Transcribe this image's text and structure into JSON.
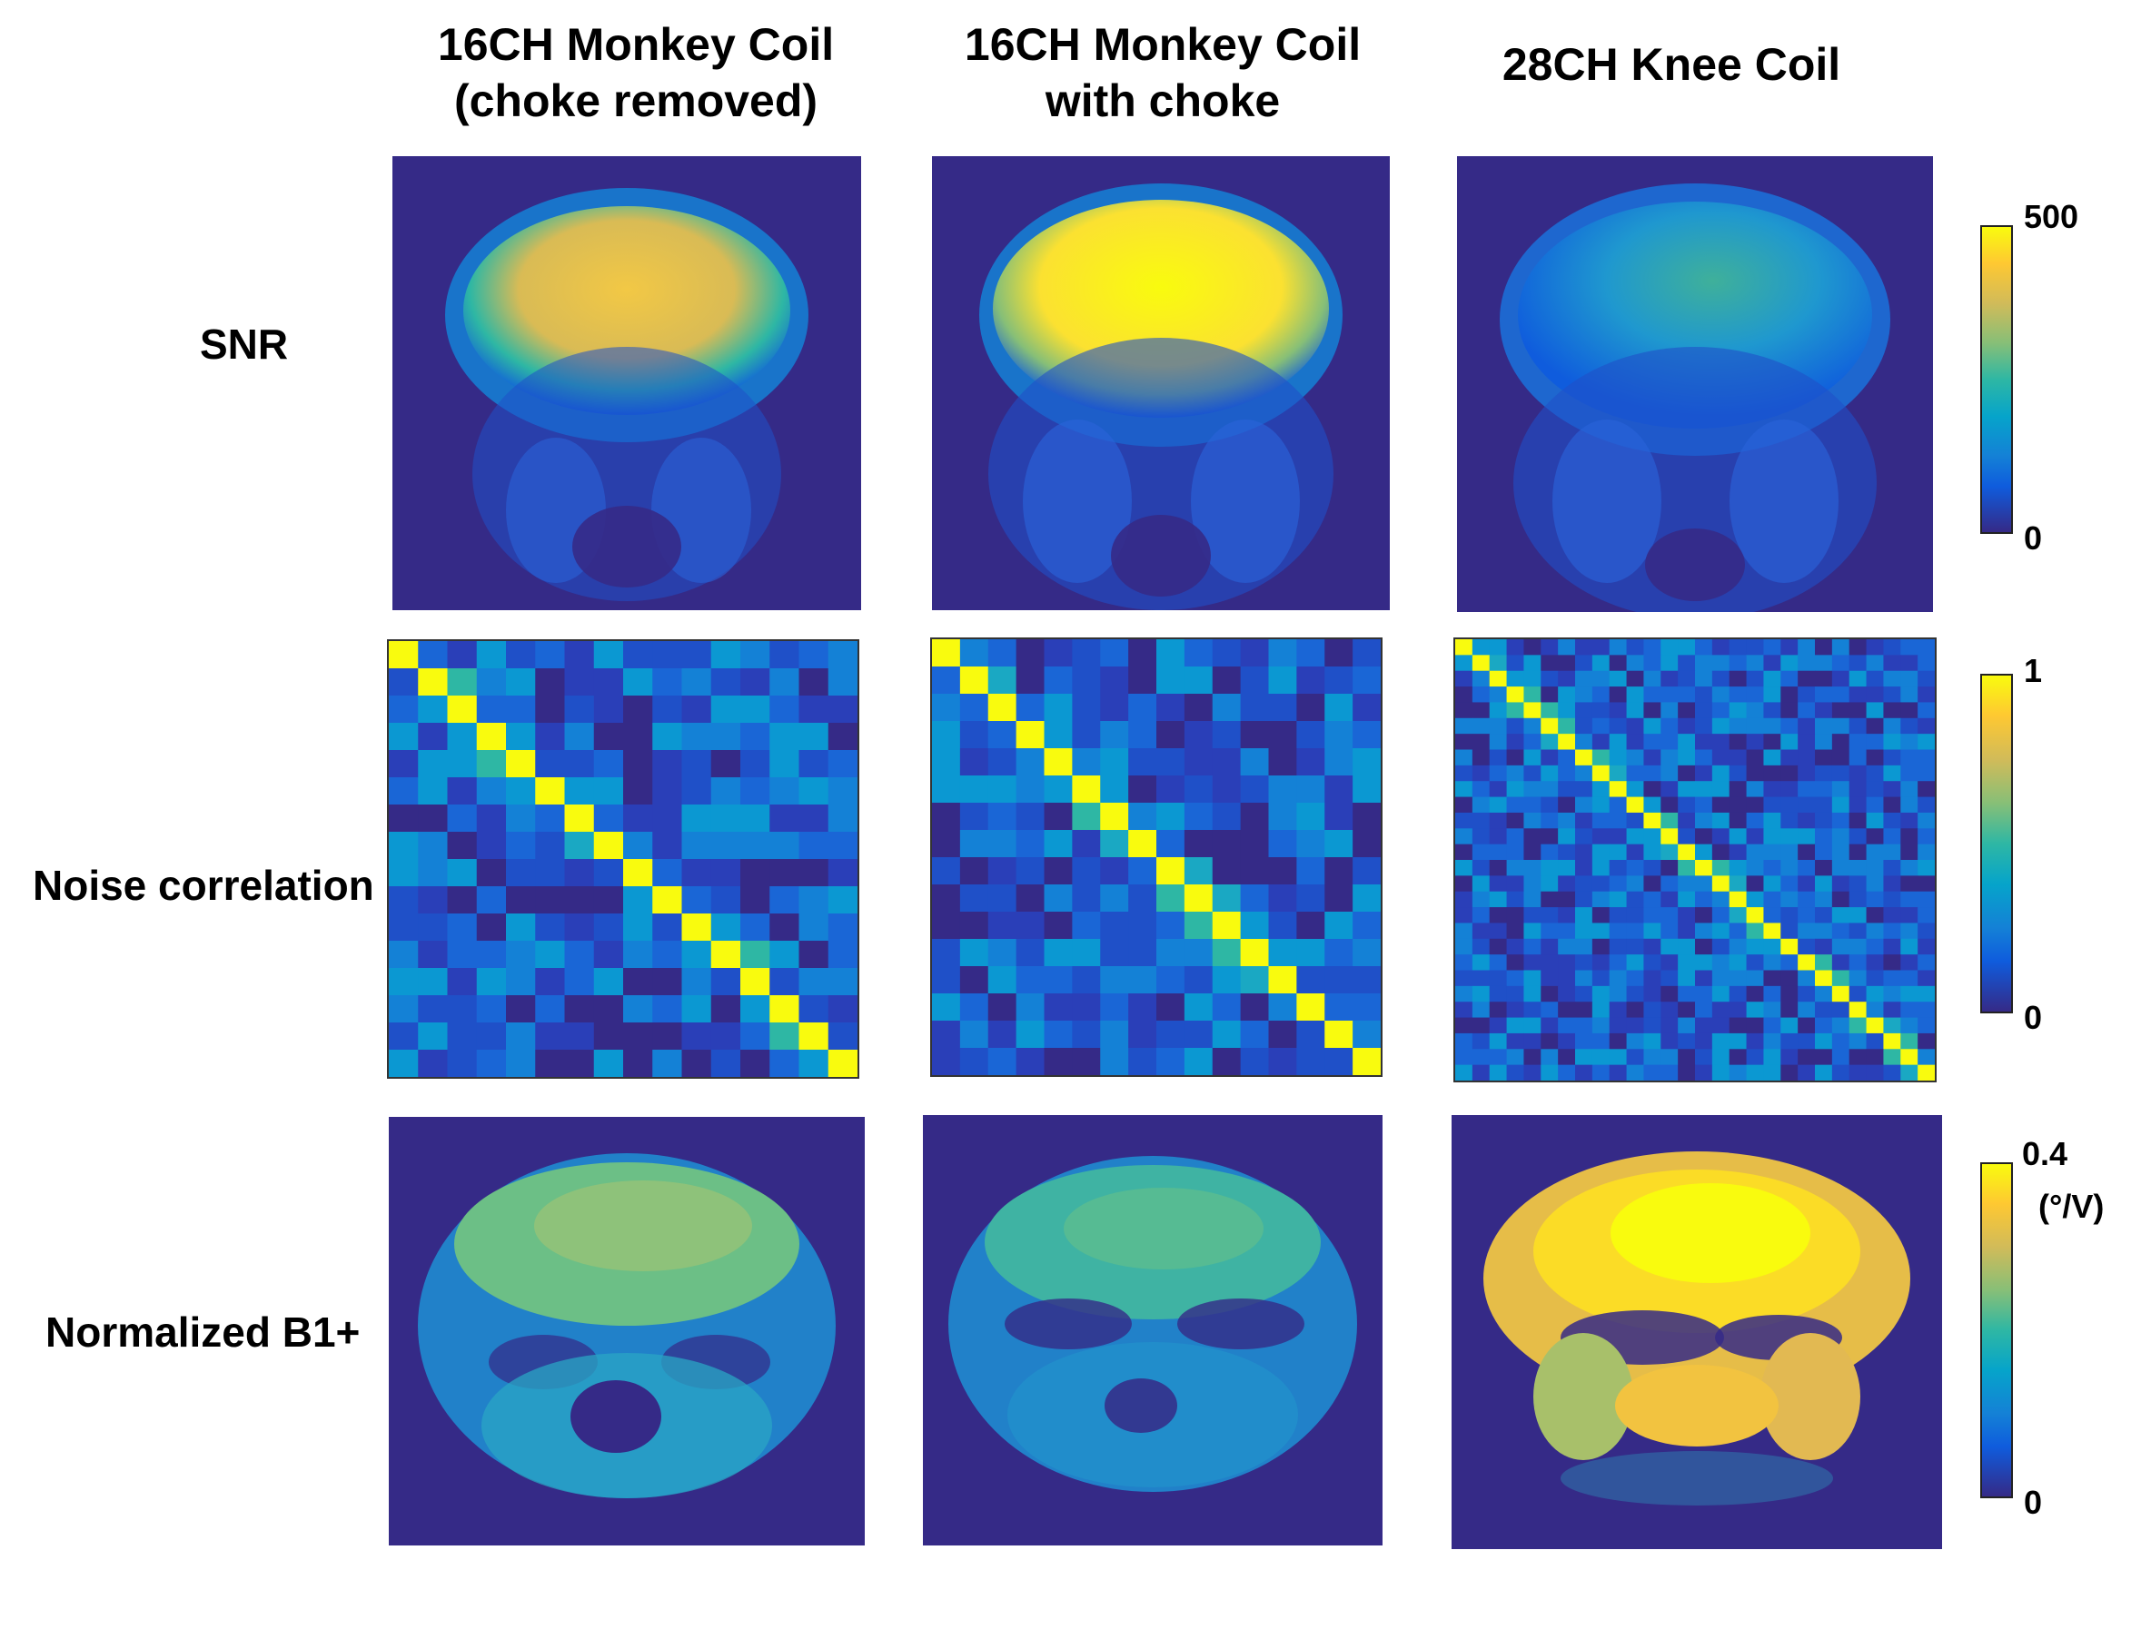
{
  "columns": [
    {
      "line1": "16CH Monkey Coil",
      "line2": "(choke removed)"
    },
    {
      "line1": "16CH Monkey Coil",
      "line2": "with choke"
    },
    {
      "line1": "28CH Knee Coil",
      "line2": ""
    }
  ],
  "rows": {
    "snr": "SNR",
    "noise": "Noise correlation",
    "b1": "Normalized B1+"
  },
  "colorbars": {
    "snr": {
      "max": "500",
      "min": "0"
    },
    "noise": {
      "max": "1",
      "min": "0"
    },
    "b1": {
      "max": "0.4",
      "unit": "(°/V)",
      "min": "0"
    }
  },
  "colormap": "parula",
  "colors": {
    "background": "#352a87",
    "low": "#0f5cdd",
    "mid": "#2eb7a4",
    "high": "#f9fb0e"
  }
}
